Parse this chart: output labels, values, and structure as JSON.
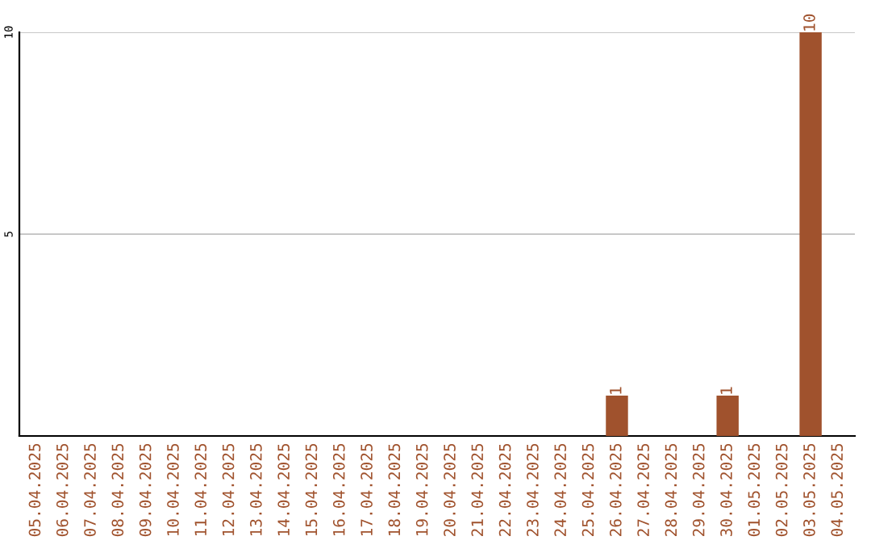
{
  "chart_data": {
    "type": "bar",
    "categories": [
      "05.04.2025",
      "06.04.2025",
      "07.04.2025",
      "08.04.2025",
      "09.04.2025",
      "10.04.2025",
      "11.04.2025",
      "12.04.2025",
      "13.04.2025",
      "14.04.2025",
      "15.04.2025",
      "16.04.2025",
      "17.04.2025",
      "18.04.2025",
      "19.04.2025",
      "20.04.2025",
      "21.04.2025",
      "22.04.2025",
      "23.04.2025",
      "24.04.2025",
      "25.04.2025",
      "26.04.2025",
      "27.04.2025",
      "28.04.2025",
      "29.04.2025",
      "30.04.2025",
      "01.05.2025",
      "02.05.2025",
      "03.05.2025",
      "04.05.2025"
    ],
    "values": [
      0,
      0,
      0,
      0,
      0,
      0,
      0,
      0,
      0,
      0,
      0,
      0,
      0,
      0,
      0,
      0,
      0,
      0,
      0,
      0,
      0,
      1,
      0,
      0,
      0,
      1,
      0,
      0,
      10,
      0
    ],
    "value_labels": [
      null,
      null,
      null,
      null,
      null,
      null,
      null,
      null,
      null,
      null,
      null,
      null,
      null,
      null,
      null,
      null,
      null,
      null,
      null,
      null,
      null,
      "1",
      null,
      null,
      null,
      "1",
      null,
      null,
      "10",
      null
    ],
    "color": "#a0522d",
    "ylim": [
      0,
      10
    ],
    "yticks": [
      5,
      10
    ],
    "grid": "y"
  }
}
